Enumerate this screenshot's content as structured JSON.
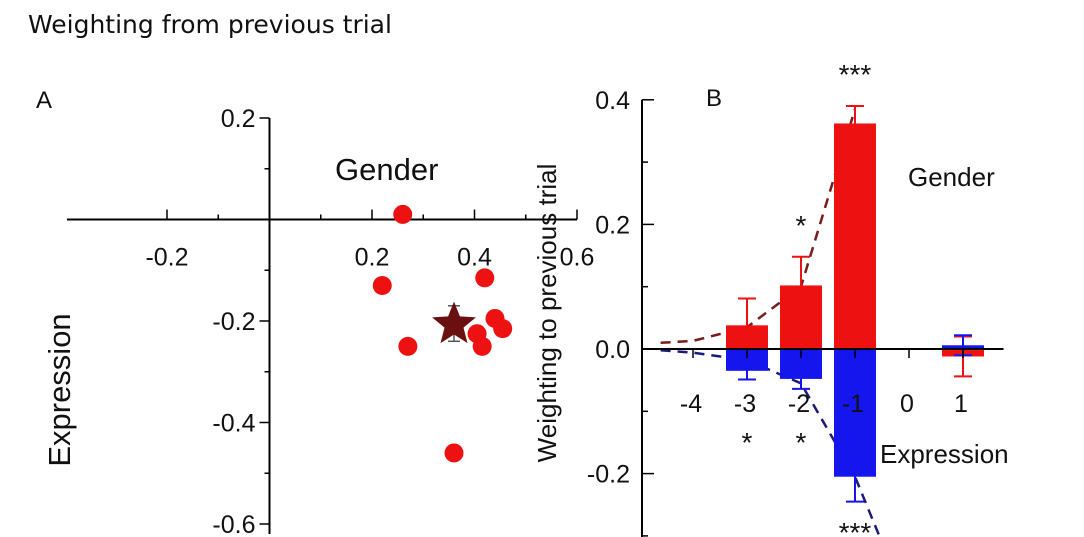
{
  "figure_title": "Weighting from previous trial",
  "colors": {
    "gender": "#ee1111",
    "expression": "#1515ee",
    "mean_star": "#6b1010",
    "gender_dash": "#7a1a1a",
    "expression_dash": "#1a1a7a",
    "axis": "#000000"
  },
  "chart_data": [
    {
      "type": "scatter",
      "panel_label": "A",
      "xlabel": "Gender",
      "ylabel": "Expression",
      "xlim": [
        -0.2,
        0.6
      ],
      "ylim": [
        -0.6,
        0.2
      ],
      "x_ticks": [
        -0.2,
        0.2,
        0.4,
        0.6
      ],
      "x_tick_labels": [
        "-0.2",
        "0.2",
        "0.4",
        "0.6"
      ],
      "y_ticks": [
        0.2,
        -0.2,
        -0.4,
        -0.6
      ],
      "y_tick_labels": [
        "0.2",
        "-0.2",
        "-0.4",
        "-0.6"
      ],
      "points": [
        {
          "x": 0.26,
          "y": 0.01
        },
        {
          "x": 0.22,
          "y": -0.13
        },
        {
          "x": 0.27,
          "y": -0.25
        },
        {
          "x": 0.42,
          "y": -0.115
        },
        {
          "x": 0.44,
          "y": -0.195
        },
        {
          "x": 0.455,
          "y": -0.215
        },
        {
          "x": 0.405,
          "y": -0.225
        },
        {
          "x": 0.415,
          "y": -0.25
        },
        {
          "x": 0.36,
          "y": -0.46
        }
      ],
      "mean": {
        "x": 0.36,
        "y": -0.205,
        "error": 0.035
      }
    },
    {
      "type": "bar",
      "panel_label": "B",
      "ylabel": "Weighting to previous trial",
      "ylim": [
        -0.3,
        0.4
      ],
      "y_ticks": [
        0.4,
        0.2,
        0.0,
        -0.2
      ],
      "y_tick_labels": [
        "0.4",
        "0.2",
        "0.0",
        "-0.2"
      ],
      "x_ticks": [
        -4,
        -3,
        -2,
        -1,
        0,
        1
      ],
      "x_tick_labels": [
        "-4",
        "-3",
        "-2",
        "-1",
        "0",
        "1"
      ],
      "series": [
        {
          "name": "Gender",
          "x": [
            -3,
            -2,
            -1,
            1
          ],
          "values": [
            0.038,
            0.102,
            0.362,
            -0.012
          ],
          "errors": [
            0.043,
            0.046,
            0.028,
            0.032
          ],
          "significance": [
            "",
            "*",
            "***",
            ""
          ]
        },
        {
          "name": "Expression",
          "x": [
            -3,
            -2,
            -1,
            1
          ],
          "values": [
            -0.035,
            -0.048,
            -0.205,
            0.006
          ],
          "errors": [
            0.014,
            0.016,
            0.04,
            0.016
          ],
          "significance": [
            "*",
            "*",
            "***",
            ""
          ]
        }
      ],
      "fit_lines": [
        {
          "series": "Gender",
          "x": [
            -4.6,
            -4,
            -3,
            -2,
            -1
          ],
          "y": [
            0.01,
            0.013,
            0.035,
            0.1,
            0.385
          ]
        },
        {
          "series": "Expression",
          "x": [
            -4.6,
            -4,
            -3,
            -2,
            -1,
            -0.55
          ],
          "y": [
            -0.002,
            -0.006,
            -0.018,
            -0.055,
            -0.205,
            -0.3
          ]
        }
      ]
    }
  ]
}
